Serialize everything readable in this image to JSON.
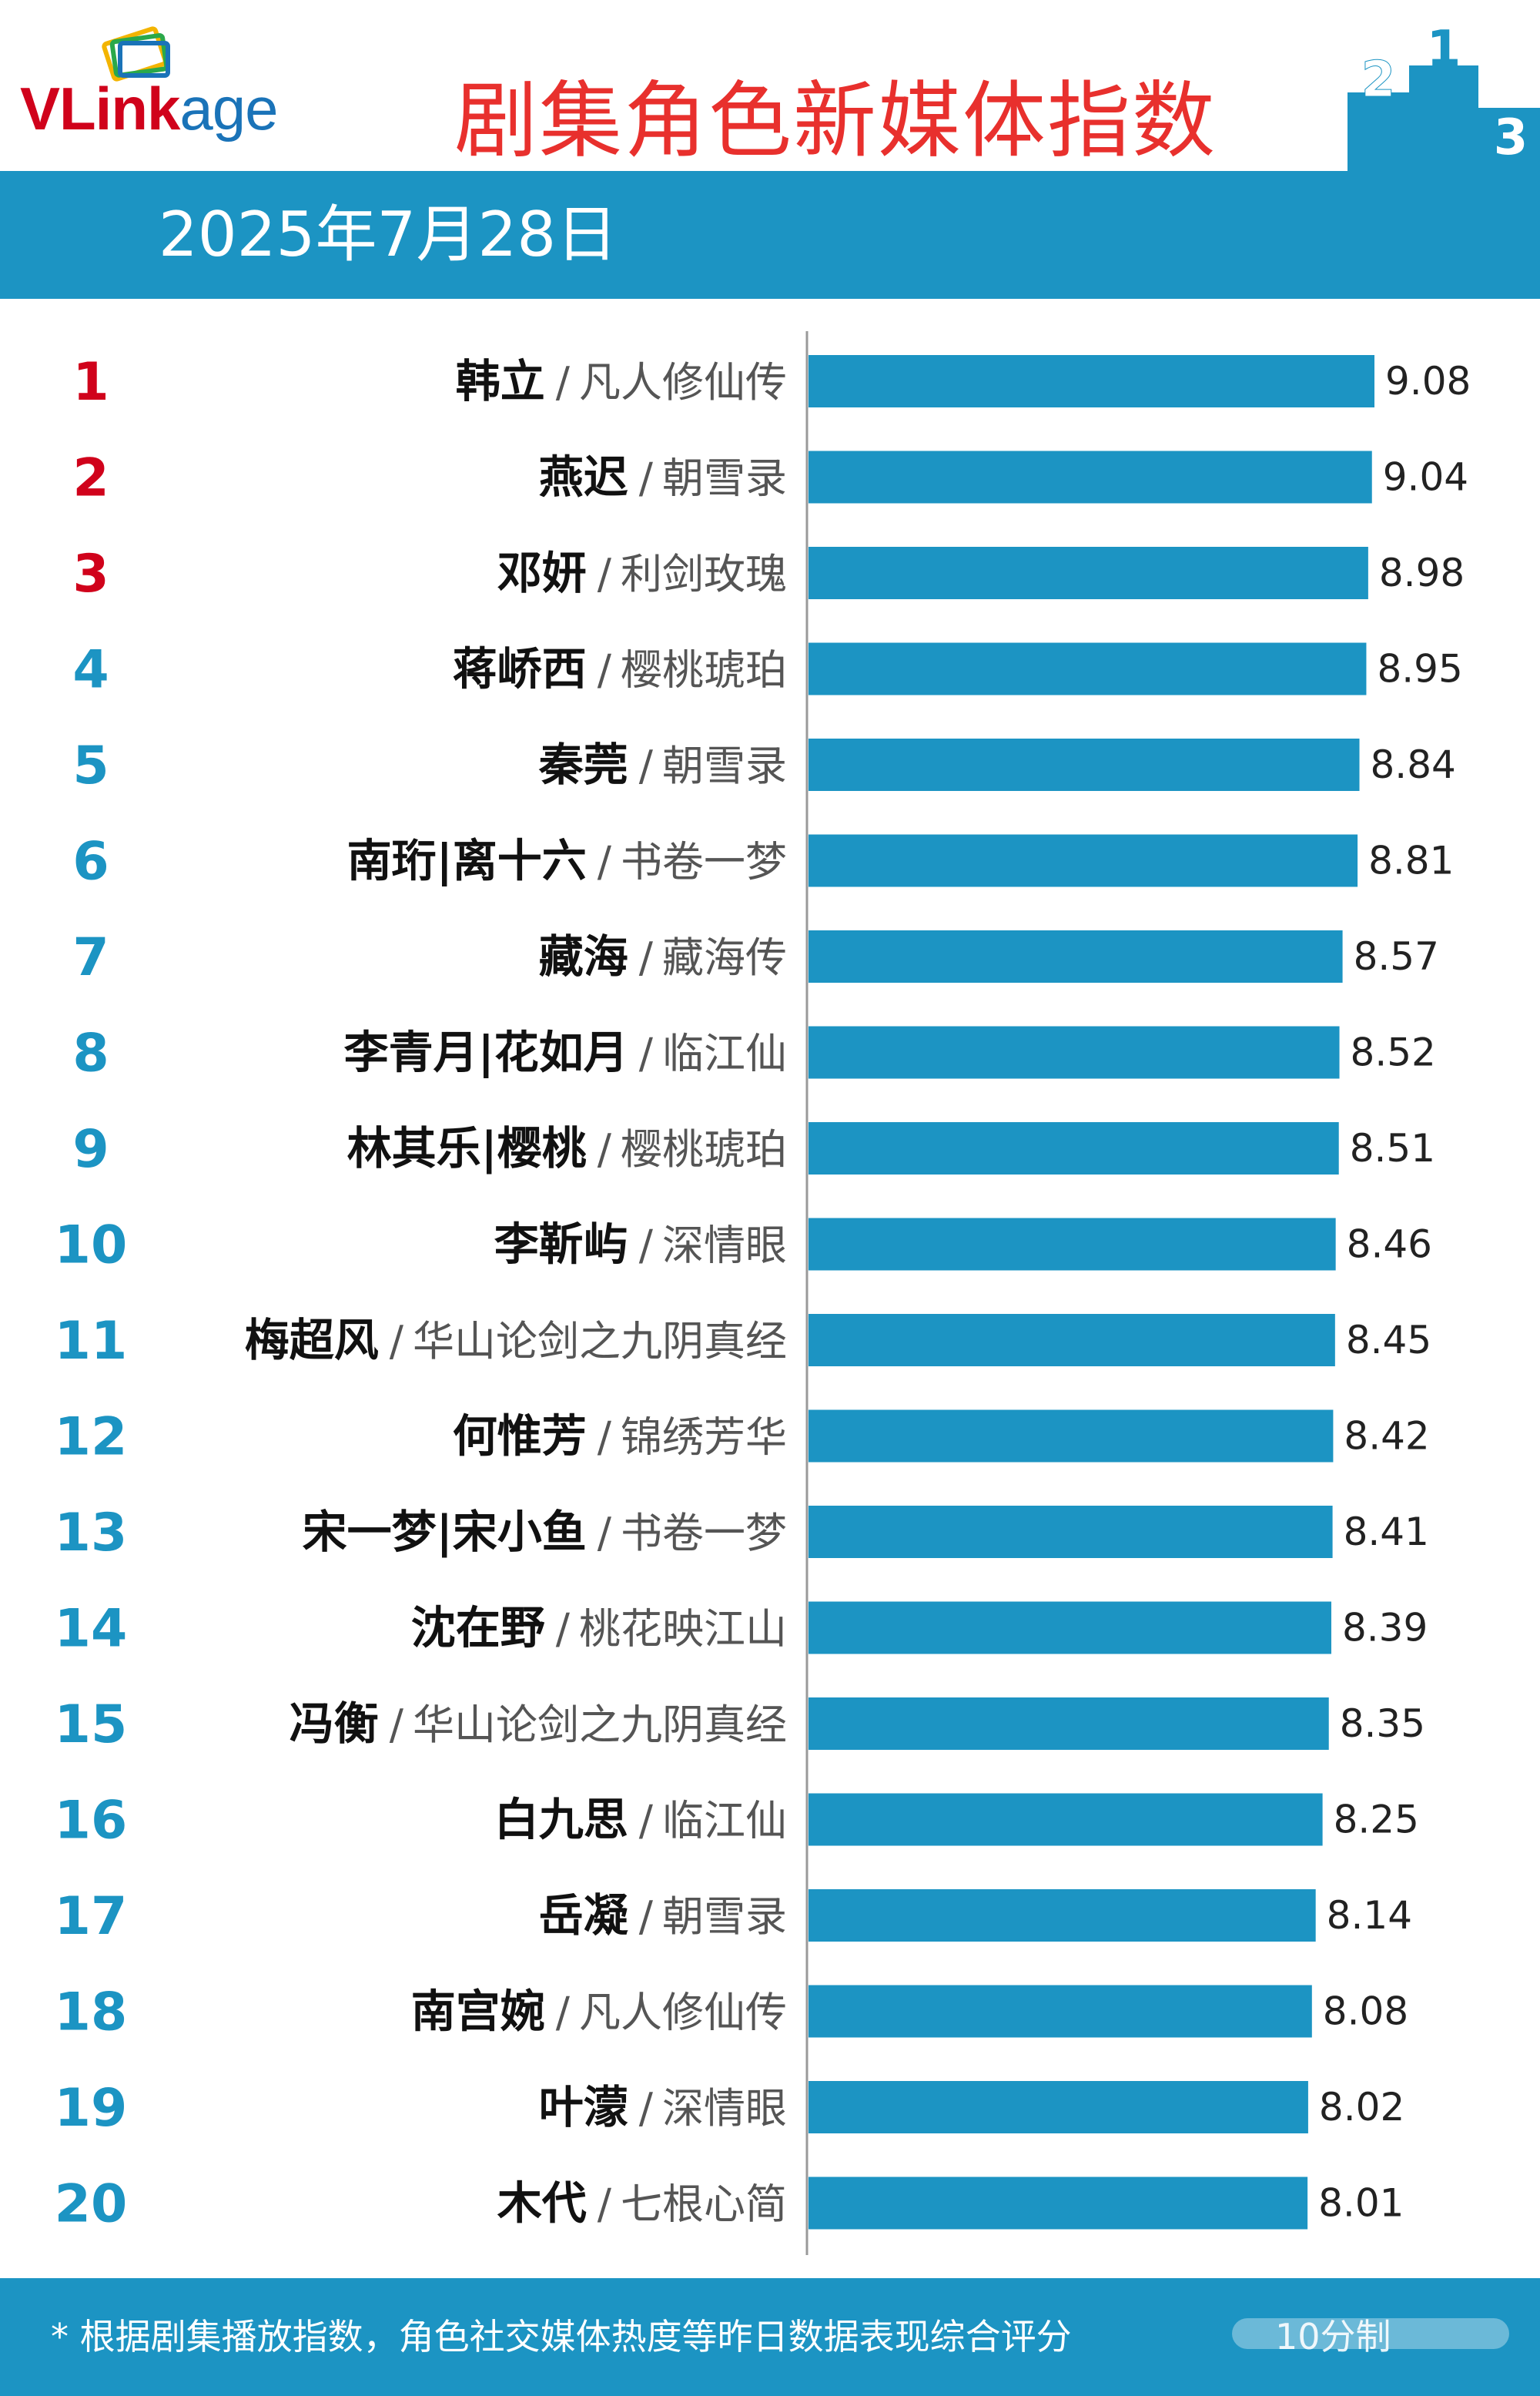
{
  "brand": {
    "logo_v": "V",
    "logo_rest": "Linkage",
    "logo_red_part": "Link",
    "logo_blue_part": "age"
  },
  "title": "剧集角色新媒体指数",
  "date": "2025年7月28日",
  "colors": {
    "bar": "#1c94c3",
    "top3_rank": "#d0021b",
    "rank": "#1c94c3",
    "title": "#e8302d"
  },
  "podium_labels": [
    "2",
    "1",
    "3"
  ],
  "separator": "/",
  "chart_data": {
    "type": "bar",
    "orientation": "horizontal",
    "xlim": [
      0,
      10
    ],
    "grid": false,
    "rows": [
      {
        "rank": "1",
        "name": "韩立",
        "show": "凡人修仙传",
        "value": 9.08
      },
      {
        "rank": "2",
        "name": "燕迟",
        "show": "朝雪录",
        "value": 9.04
      },
      {
        "rank": "3",
        "name": "邓妍",
        "show": "利剑玫瑰",
        "value": 8.98
      },
      {
        "rank": "4",
        "name": "蒋峤西",
        "show": "樱桃琥珀",
        "value": 8.95
      },
      {
        "rank": "5",
        "name": "秦莞",
        "show": "朝雪录",
        "value": 8.84
      },
      {
        "rank": "6",
        "name": "南珩|离十六",
        "show": "书卷一梦",
        "value": 8.81
      },
      {
        "rank": "7",
        "name": "藏海",
        "show": "藏海传",
        "value": 8.57
      },
      {
        "rank": "8",
        "name": "李青月|花如月",
        "show": "临江仙",
        "value": 8.52
      },
      {
        "rank": "9",
        "name": "林其乐|樱桃",
        "show": "樱桃琥珀",
        "value": 8.51
      },
      {
        "rank": "10",
        "name": "李靳屿",
        "show": "深情眼",
        "value": 8.46
      },
      {
        "rank": "11",
        "name": "梅超风",
        "show": "华山论剑之九阴真经",
        "value": 8.45
      },
      {
        "rank": "12",
        "name": "何惟芳",
        "show": "锦绣芳华",
        "value": 8.42
      },
      {
        "rank": "13",
        "name": "宋一梦|宋小鱼",
        "show": "书卷一梦",
        "value": 8.41
      },
      {
        "rank": "14",
        "name": "沈在野",
        "show": "桃花映江山",
        "value": 8.39
      },
      {
        "rank": "15",
        "name": "冯衡",
        "show": "华山论剑之九阴真经",
        "value": 8.35
      },
      {
        "rank": "16",
        "name": "白九思",
        "show": "临江仙",
        "value": 8.25
      },
      {
        "rank": "17",
        "name": "岳凝",
        "show": "朝雪录",
        "value": 8.14
      },
      {
        "rank": "18",
        "name": "南宫婉",
        "show": "凡人修仙传",
        "value": 8.08
      },
      {
        "rank": "19",
        "name": "叶濛",
        "show": "深情眼",
        "value": 8.02
      },
      {
        "rank": "20",
        "name": "木代",
        "show": "七根心简",
        "value": 8.01
      }
    ]
  },
  "footnote": "* 根据剧集播放指数，角色社交媒体热度等昨日数据表现综合评分",
  "footnote_scale": "10分制"
}
